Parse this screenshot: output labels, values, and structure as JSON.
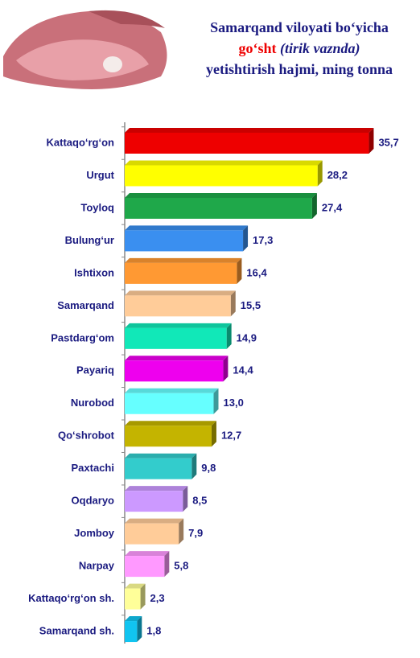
{
  "chart_data": {
    "type": "bar",
    "orientation": "horizontal",
    "title": [
      "Samarqand viloyati bo‘yicha",
      "go‘sht",
      "(tirik vaznda)",
      "yetishtirish hajmi, ming tonna"
    ],
    "categories": [
      "Kattaqo‘rg‘on",
      "Urgut",
      "Toyloq",
      "Bulung‘ur",
      "Ishtixon",
      "Samarqand",
      "Pastdarg‘om",
      "Payariq",
      "Nurobod",
      "Qo‘shrobot",
      "Paxtachi",
      "Oqdaryo",
      "Jomboy",
      "Narpay",
      "Kattaqo‘rg‘on sh.",
      "Samarqand sh."
    ],
    "values": [
      35.7,
      28.2,
      27.4,
      17.3,
      16.4,
      15.5,
      14.9,
      14.4,
      13.0,
      12.7,
      9.8,
      8.5,
      7.9,
      5.8,
      2.3,
      1.8
    ],
    "value_labels": [
      "35,7",
      "28,2",
      "27,4",
      "17,3",
      "16,4",
      "15,5",
      "14,9",
      "14,4",
      "13,0",
      "12,7",
      "9,8",
      "8,5",
      "7,9",
      "5,8",
      "2,3",
      "1,8"
    ],
    "colors": [
      "#ee0000",
      "#ffff00",
      "#1fa84a",
      "#3a8ff0",
      "#ff9933",
      "#ffcc99",
      "#11e8b8",
      "#ee00ee",
      "#66ffff",
      "#c4b400",
      "#33cccc",
      "#cc99ff",
      "#ffcc99",
      "#ff99ff",
      "#ffff99",
      "#11c4f0"
    ],
    "xlim": [
      0,
      42
    ]
  }
}
